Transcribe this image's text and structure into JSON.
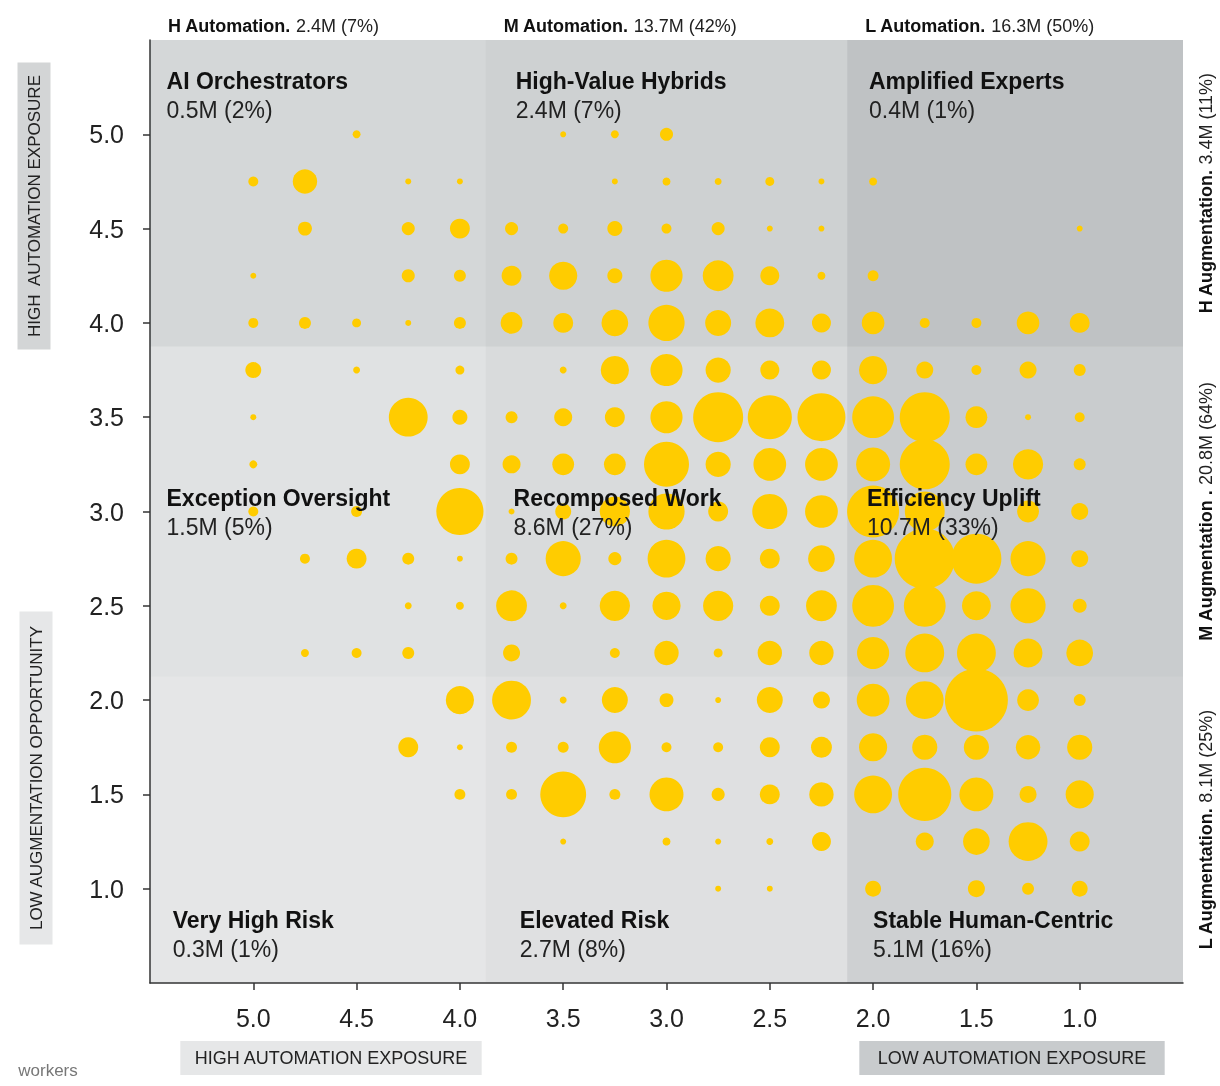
{
  "chart_data": {
    "type": "bubble",
    "marker": "circle",
    "xlim": [
      5.5,
      0.5
    ],
    "ylim": [
      0.5,
      5.5
    ],
    "xticks": [
      {
        "value": 5,
        "label": "5.0"
      },
      {
        "value": 4.5,
        "label": "4.5"
      },
      {
        "value": 4,
        "label": "4.0"
      },
      {
        "value": 3.5,
        "label": "3.5"
      },
      {
        "value": 3,
        "label": "3.0"
      },
      {
        "value": 2.5,
        "label": "2.5"
      },
      {
        "value": 2,
        "label": "2.0"
      },
      {
        "value": 1.5,
        "label": "1.5"
      },
      {
        "value": 1,
        "label": "1.0"
      }
    ],
    "yticks": [
      {
        "value": 1,
        "label": "1.0"
      },
      {
        "value": 1.5,
        "label": "1.5"
      },
      {
        "value": 2,
        "label": "2.0"
      },
      {
        "value": 2.5,
        "label": "2.5"
      },
      {
        "value": 3,
        "label": "3.0"
      },
      {
        "value": 3.5,
        "label": "3.5"
      },
      {
        "value": 4,
        "label": "4.0"
      },
      {
        "value": 4.5,
        "label": "4.5"
      },
      {
        "value": 5,
        "label": "5.0"
      }
    ],
    "bands": [
      {
        "axis": "x",
        "from": 5.5,
        "to": 3.875,
        "label": "H Automation. 2.4M (7%)"
      },
      {
        "axis": "x",
        "from": 3.875,
        "to": 2.125,
        "label": "M Automation. 13.7M (42%)"
      },
      {
        "axis": "x",
        "from": 2.125,
        "to": 0.5,
        "label": "L Automation. 16.3M (50%)"
      },
      {
        "axis": "y",
        "from": 3.875,
        "to": 5.5,
        "label": "H Augmentation. 3.4M (11%)"
      },
      {
        "axis": "y",
        "from": 2.125,
        "to": 3.875,
        "label": "M Augmentation . 20.8M (64%)"
      },
      {
        "axis": "y",
        "from": 0.5,
        "to": 2.125,
        "label": "L Augmentation. 8.1M (25%)"
      }
    ],
    "annotations": [
      "HIGH  AUTOMATION EXPOSURE",
      "LOW AUGMENTATION OPPORTUNITY",
      "HIGH AUTOMATION EXPOSURE",
      "LOW AUTOMATION EXPOSURE",
      "workers",
      "AI Orchestrators\n0.5M (2%)",
      "High-Value Hybrids\n2.4M (7%)",
      "Amplified Experts\n0.4M (1%)",
      "Exception Oversight\n1.5M (5%)",
      "Recomposed Work\n8.6M (27%)",
      "Efficiency Uplift\n10.7M (33%)",
      "Very High Risk\n0.3M (1%)",
      "Elevated Risk\n2.7M (8%)",
      "Stable Human-Centric\n5.1M (16%)"
    ],
    "series": [
      {
        "color": "#ffcc00",
        "x": [
          4.5,
          3.5,
          3.25,
          3.0
        ],
        "values": [
          5,
          5,
          5,
          5
        ],
        "sizes": [
          0.016,
          0.009,
          0.016,
          0.043
        ]
      },
      {
        "color": "#ffcc00",
        "x": [
          5.0,
          4.75,
          4.25,
          4.0,
          3.25,
          3.0,
          2.75,
          2.5,
          2.25,
          2.0
        ],
        "values": [
          4.75,
          4.75,
          4.75,
          4.75,
          4.75,
          4.75,
          4.75,
          4.75,
          4.75,
          4.75
        ],
        "sizes": [
          0.025,
          0.15,
          0.009,
          0.009,
          0.009,
          0.016,
          0.012,
          0.02,
          0.009,
          0.016
        ]
      },
      {
        "color": "#ffcc00",
        "x": [
          4.75,
          4.25,
          4.0,
          3.75,
          3.5,
          3.25,
          3.0,
          2.75,
          2.5,
          2.25,
          1.0
        ],
        "values": [
          4.5,
          4.5,
          4.5,
          4.5,
          4.5,
          4.5,
          4.5,
          4.5,
          4.5,
          4.5,
          4.5
        ],
        "sizes": [
          0.049,
          0.043,
          0.1,
          0.043,
          0.025,
          0.057,
          0.025,
          0.043,
          0.009,
          0.009,
          0.009
        ]
      },
      {
        "color": "#ffcc00",
        "x": [
          5.0,
          4.25,
          4.0,
          3.75,
          3.5,
          3.25,
          3.0,
          2.75,
          2.5,
          2.25,
          2.0
        ],
        "values": [
          4.25,
          4.25,
          4.25,
          4.25,
          4.25,
          4.25,
          4.25,
          4.25,
          4.25,
          4.25,
          4.25
        ],
        "sizes": [
          0.009,
          0.043,
          0.036,
          0.1,
          0.2,
          0.057,
          0.26,
          0.24,
          0.091,
          0.016,
          0.03
        ]
      },
      {
        "color": "#ffcc00",
        "x": [
          5.0,
          4.75,
          4.5,
          4.25,
          4.0,
          3.75,
          3.5,
          3.25,
          3.0,
          2.75,
          2.5,
          2.25,
          2.0,
          1.75,
          1.5,
          1.25,
          1.0
        ],
        "values": [
          4,
          4,
          4,
          4,
          4,
          4,
          4,
          4,
          4,
          4,
          4,
          4,
          4,
          4,
          4,
          4,
          4
        ],
        "sizes": [
          0.025,
          0.036,
          0.02,
          0.009,
          0.036,
          0.12,
          0.1,
          0.18,
          0.33,
          0.17,
          0.21,
          0.091,
          0.13,
          0.025,
          0.025,
          0.13,
          0.1
        ]
      },
      {
        "color": "#ffcc00",
        "x": [
          5.0,
          4.5,
          4.0,
          3.5,
          3.25,
          3.0,
          2.75,
          2.5,
          2.25,
          2.0,
          1.75,
          1.5,
          1.25,
          1.0
        ],
        "values": [
          3.75,
          3.75,
          3.75,
          3.75,
          3.75,
          3.75,
          3.75,
          3.75,
          3.75,
          3.75,
          3.75,
          3.75,
          3.75,
          3.75
        ],
        "sizes": [
          0.064,
          0.012,
          0.02,
          0.012,
          0.2,
          0.26,
          0.16,
          0.091,
          0.091,
          0.2,
          0.073,
          0.025,
          0.073,
          0.036
        ]
      },
      {
        "color": "#ffcc00",
        "x": [
          5.0,
          4.25,
          4.0,
          3.75,
          3.5,
          3.25,
          3.0,
          2.75,
          2.5,
          2.25,
          2.0,
          1.75,
          1.5,
          1.25,
          1.0
        ],
        "values": [
          3.5,
          3.5,
          3.5,
          3.5,
          3.5,
          3.5,
          3.5,
          3.5,
          3.5,
          3.5,
          3.5,
          3.5,
          3.5,
          3.5,
          3.5
        ],
        "sizes": [
          0.009,
          0.38,
          0.057,
          0.036,
          0.082,
          0.1,
          0.26,
          0.63,
          0.49,
          0.58,
          0.44,
          0.63,
          0.12,
          0.009,
          0.025
        ]
      },
      {
        "color": "#ffcc00",
        "x": [
          5.0,
          4.0,
          3.75,
          3.5,
          3.25,
          3.0,
          2.75,
          2.5,
          2.25,
          2.0,
          1.75,
          1.5,
          1.25,
          1.0
        ],
        "values": [
          3.25,
          3.25,
          3.25,
          3.25,
          3.25,
          3.25,
          3.25,
          3.25,
          3.25,
          3.25,
          3.25,
          3.25,
          3.25,
          3.25
        ],
        "sizes": [
          0.016,
          0.1,
          0.082,
          0.12,
          0.12,
          0.51,
          0.16,
          0.27,
          0.27,
          0.29,
          0.63,
          0.12,
          0.23,
          0.036
        ]
      },
      {
        "color": "#ffcc00",
        "x": [
          5.0,
          4.5,
          4.0,
          3.75,
          3.5,
          3.25,
          3.0,
          2.75,
          2.5,
          2.25,
          2.0,
          1.75,
          1.25,
          1.0
        ],
        "values": [
          3,
          3,
          3,
          3,
          3,
          3,
          3,
          3,
          3,
          3,
          3,
          3,
          3,
          3
        ],
        "sizes": [
          0.025,
          0.03,
          0.56,
          0.009,
          0.064,
          0.23,
          0.33,
          0.1,
          0.31,
          0.27,
          0.68,
          0.4,
          0.12,
          0.073
        ]
      },
      {
        "color": "#ffcc00",
        "x": [
          4.75,
          4.5,
          4.25,
          4.0,
          3.75,
          3.5,
          3.25,
          3.0,
          2.75,
          2.5,
          2.25,
          2.0,
          1.75,
          1.5,
          1.25,
          1.0
        ],
        "values": [
          2.75,
          2.75,
          2.75,
          2.75,
          2.75,
          2.75,
          2.75,
          2.75,
          2.75,
          2.75,
          2.75,
          2.75,
          2.75,
          2.75,
          2.75,
          2.75
        ],
        "sizes": [
          0.025,
          0.1,
          0.036,
          0.009,
          0.036,
          0.31,
          0.043,
          0.36,
          0.16,
          0.1,
          0.18,
          0.36,
          0.91,
          0.63,
          0.31,
          0.073
        ]
      },
      {
        "color": "#ffcc00",
        "x": [
          4.25,
          4.0,
          3.75,
          3.5,
          3.25,
          3.0,
          2.75,
          2.5,
          2.25,
          2.0,
          1.75,
          1.5,
          1.25,
          1.0
        ],
        "values": [
          2.5,
          2.5,
          2.5,
          2.5,
          2.5,
          2.5,
          2.5,
          2.5,
          2.5,
          2.5,
          2.5,
          2.5,
          2.5,
          2.5
        ],
        "sizes": [
          0.012,
          0.016,
          0.24,
          0.012,
          0.23,
          0.2,
          0.23,
          0.1,
          0.24,
          0.44,
          0.44,
          0.21,
          0.31,
          0.049
        ]
      },
      {
        "color": "#ffcc00",
        "x": [
          4.75,
          4.5,
          4.25,
          3.75,
          3.25,
          3.0,
          2.75,
          2.5,
          2.25,
          2.0,
          1.75,
          1.5,
          1.25,
          1.0
        ],
        "values": [
          2.25,
          2.25,
          2.25,
          2.25,
          2.25,
          2.25,
          2.25,
          2.25,
          2.25,
          2.25,
          2.25,
          2.25,
          2.25,
          2.25
        ],
        "sizes": [
          0.016,
          0.025,
          0.036,
          0.073,
          0.025,
          0.15,
          0.02,
          0.15,
          0.15,
          0.26,
          0.38,
          0.38,
          0.21,
          0.18
        ]
      },
      {
        "color": "#ffcc00",
        "x": [
          4.0,
          3.75,
          3.5,
          3.25,
          3.0,
          2.75,
          2.5,
          2.25,
          2.0,
          1.75,
          1.5,
          1.25,
          1.0
        ],
        "values": [
          2,
          2,
          2,
          2,
          2,
          2,
          2,
          2,
          2,
          2,
          2,
          2,
          2
        ],
        "sizes": [
          0.2,
          0.38,
          0.012,
          0.17,
          0.049,
          0.009,
          0.17,
          0.073,
          0.27,
          0.36,
          1,
          0.12,
          0.036
        ]
      },
      {
        "color": "#ffcc00",
        "x": [
          4.25,
          4.0,
          3.75,
          3.5,
          3.25,
          3.0,
          2.75,
          2.5,
          2.25,
          2.0,
          1.75,
          1.5,
          1.25,
          1.0
        ],
        "values": [
          1.75,
          1.75,
          1.75,
          1.75,
          1.75,
          1.75,
          1.75,
          1.75,
          1.75,
          1.75,
          1.75,
          1.75,
          1.75,
          1.75
        ],
        "sizes": [
          0.1,
          0.009,
          0.03,
          0.03,
          0.26,
          0.025,
          0.025,
          0.1,
          0.11,
          0.2,
          0.16,
          0.16,
          0.15,
          0.16
        ]
      },
      {
        "color": "#ffcc00",
        "x": [
          4.0,
          3.75,
          3.5,
          3.25,
          3.0,
          2.75,
          2.5,
          2.25,
          2.0,
          1.75,
          1.5,
          1.25,
          1.0
        ],
        "values": [
          1.5,
          1.5,
          1.5,
          1.5,
          1.5,
          1.5,
          1.5,
          1.5,
          1.5,
          1.5,
          1.5,
          1.5,
          1.5
        ],
        "sizes": [
          0.03,
          0.03,
          0.53,
          0.03,
          0.29,
          0.043,
          0.1,
          0.15,
          0.36,
          0.71,
          0.29,
          0.073,
          0.2
        ]
      },
      {
        "color": "#ffcc00",
        "x": [
          3.5,
          3.0,
          2.75,
          2.5,
          2.25,
          1.75,
          1.5,
          1.25,
          1.0
        ],
        "values": [
          1.25,
          1.25,
          1.25,
          1.25,
          1.25,
          1.25,
          1.25,
          1.25,
          1.25
        ],
        "sizes": [
          0.009,
          0.016,
          0.009,
          0.012,
          0.091,
          0.082,
          0.18,
          0.38,
          0.1
        ]
      },
      {
        "color": "#ffcc00",
        "x": [
          2.75,
          2.5,
          2.0,
          1.5,
          1.25,
          1.0
        ],
        "values": [
          1,
          1,
          1,
          1,
          1,
          1
        ],
        "sizes": [
          0.009,
          0.009,
          0.064,
          0.073,
          0.036,
          0.064
        ]
      }
    ]
  }
}
